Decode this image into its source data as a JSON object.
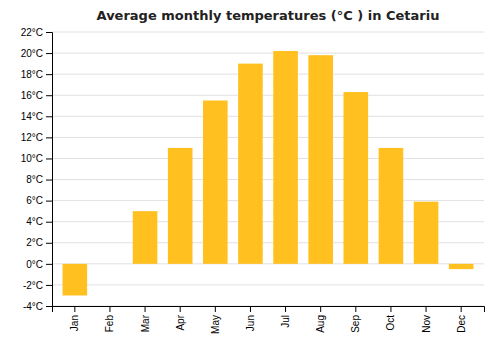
{
  "chart_data": {
    "type": "bar",
    "title": "Average monthly temperatures (°C ) in Cetariu",
    "categories": [
      "Jan",
      "Feb",
      "Mar",
      "Apr",
      "May",
      "Jun",
      "Jul",
      "Aug",
      "Sep",
      "Oct",
      "Nov",
      "Dec"
    ],
    "values": [
      -3.0,
      0.0,
      5.0,
      11.0,
      15.5,
      19.0,
      20.2,
      19.8,
      16.3,
      11.0,
      5.9,
      -0.5
    ],
    "color": "#FFC020",
    "ylim": [
      -4,
      22
    ],
    "yticks": [
      {
        "value": -4,
        "label": "-4°C"
      },
      {
        "value": -2,
        "label": "-2°C"
      },
      {
        "value": 0,
        "label": "0°C"
      },
      {
        "value": 2,
        "label": "2°C"
      },
      {
        "value": 4,
        "label": "4°C"
      },
      {
        "value": 6,
        "label": "6°C"
      },
      {
        "value": 8,
        "label": "8°C"
      },
      {
        "value": 10,
        "label": "10°C"
      },
      {
        "value": 12,
        "label": "12°C"
      },
      {
        "value": 14,
        "label": "14°C"
      },
      {
        "value": 16,
        "label": "16°C"
      },
      {
        "value": 18,
        "label": "18°C"
      },
      {
        "value": 20,
        "label": "20°C"
      },
      {
        "value": 22,
        "label": "22°C"
      }
    ],
    "grid": true
  }
}
